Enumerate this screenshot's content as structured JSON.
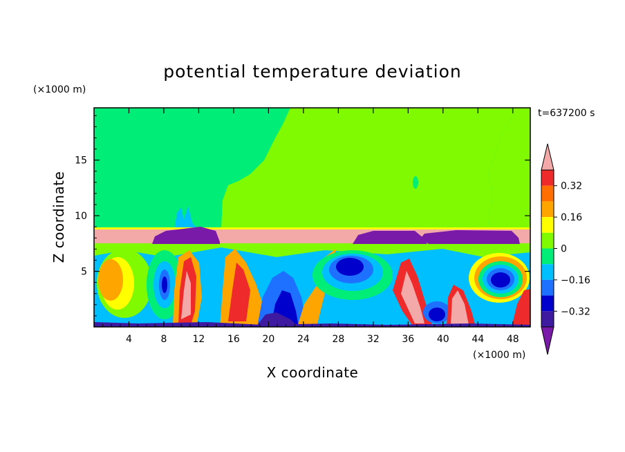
{
  "chart_data": {
    "type": "heatmap",
    "title": "potential temperature deviation",
    "xlabel": "X coordinate",
    "ylabel": "Z coordinate",
    "x_unit": "(×1000 m)",
    "y_unit": "(×1000 m)",
    "time_label": "t=637200 s",
    "xlim": [
      0,
      50
    ],
    "ylim": [
      0,
      19.7
    ],
    "x_ticks": [
      4,
      8,
      12,
      16,
      20,
      24,
      28,
      32,
      36,
      40,
      44,
      48
    ],
    "x_tick_labels": [
      "4",
      "8",
      "12",
      "16",
      "20",
      "24",
      "28",
      "32",
      "36",
      "40",
      "44",
      "48"
    ],
    "y_ticks": [
      5,
      10,
      15
    ],
    "y_tick_labels": [
      "5",
      "10",
      "15"
    ],
    "colorbar": {
      "levels": [
        -0.4,
        -0.32,
        -0.24,
        -0.16,
        -0.08,
        0,
        0.08,
        0.16,
        0.24,
        0.32,
        0.4
      ],
      "labels": [
        "0.32",
        "0.16",
        "0",
        "−0.16",
        "−0.32"
      ],
      "label_values": [
        0.32,
        0.16,
        0,
        -0.16,
        -0.32
      ],
      "colors": [
        "#f4a9a9",
        "#ee2a2a",
        "#fe6e00",
        "#ffa500",
        "#ffff00",
        "#7ffa00",
        "#00ee77",
        "#00bfff",
        "#1e70ff",
        "#0000cd",
        "#3d1a9f",
        "#7a1aa8"
      ],
      "extend": "both"
    },
    "regions": {
      "upper_layer_z": [
        9.0,
        19.7
      ],
      "upper_left_value": 0.04,
      "upper_right_value": 0.12,
      "inversion_layer_z": [
        7.6,
        9.0
      ],
      "inversion_value": 0.45,
      "cold_lenses": [
        {
          "x": [
            5.5,
            14.2
          ],
          "z": [
            7.6,
            9.0
          ],
          "value": -0.45
        },
        {
          "x": [
            28.5,
            37.4
          ],
          "z": [
            7.6,
            8.6
          ],
          "value": -0.45
        },
        {
          "x": [
            36.5,
            49.0
          ],
          "z": [
            7.7,
            8.6
          ],
          "value": -0.45
        }
      ],
      "lower_turbulent_layer_z": [
        0,
        7.6
      ],
      "lower_value_range": [
        -0.45,
        0.45
      ]
    }
  }
}
